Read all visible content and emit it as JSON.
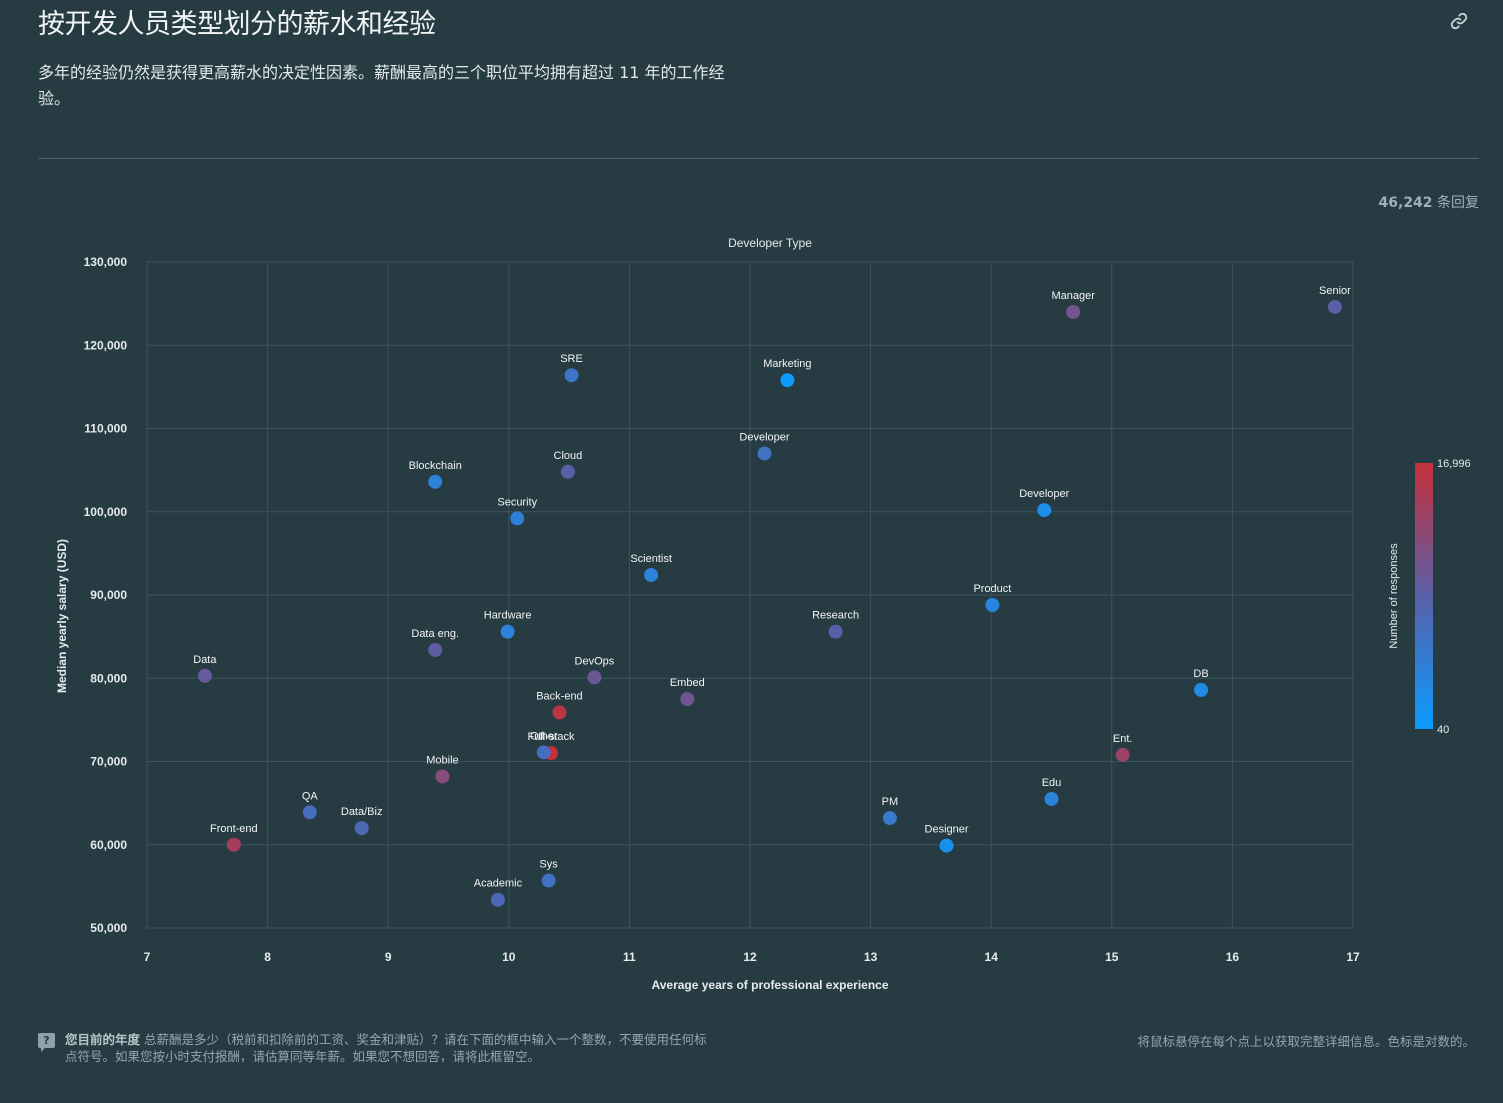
{
  "header": {
    "title": "按开发人员类型划分的薪水和经验",
    "subtitle": "多年的经验仍然是获得更高薪水的决定性因素。薪酬最高的三个职位平均拥有超过 11 年的工作经验。",
    "responses_count": "46,242",
    "responses_suffix": "条回复"
  },
  "colors": {
    "background": "#263b42",
    "grid": "#3c545d",
    "scale_low": "#0a9cff",
    "scale_high": "#c5303a"
  },
  "chart_data": {
    "type": "scatter",
    "title": "Developer Type",
    "xlabel": "Average years of professional experience",
    "ylabel": "Median yearly salary (USD)",
    "xlim": [
      7,
      17
    ],
    "ylim": [
      50000,
      130000
    ],
    "xticks": [
      7,
      8,
      9,
      10,
      11,
      12,
      13,
      14,
      15,
      16,
      17
    ],
    "yticks": [
      50000,
      60000,
      70000,
      80000,
      90000,
      100000,
      110000,
      120000,
      130000
    ],
    "ytick_labels": [
      "50,000",
      "60,000",
      "70,000",
      "80,000",
      "90,000",
      "100,000",
      "110,000",
      "120,000",
      "130,000"
    ],
    "color_scale": {
      "label": "Number of responses",
      "min_label": "40",
      "max_label": "16,996",
      "type": "log"
    },
    "points": [
      {
        "label": "Data",
        "x": 7.48,
        "y": 80300,
        "c": 0.55
      },
      {
        "label": "Front-end",
        "x": 7.72,
        "y": 60000,
        "c": 0.85
      },
      {
        "label": "QA",
        "x": 8.35,
        "y": 63900,
        "c": 0.38
      },
      {
        "label": "Data/Biz",
        "x": 8.78,
        "y": 62000,
        "c": 0.42
      },
      {
        "label": "Blockchain",
        "x": 9.39,
        "y": 103600,
        "c": 0.22
      },
      {
        "label": "Data eng.",
        "x": 9.39,
        "y": 83400,
        "c": 0.52
      },
      {
        "label": "Mobile",
        "x": 9.45,
        "y": 68200,
        "c": 0.7
      },
      {
        "label": "Academic",
        "x": 9.91,
        "y": 53400,
        "c": 0.42
      },
      {
        "label": "Hardware",
        "x": 9.99,
        "y": 85600,
        "c": 0.22
      },
      {
        "label": "Security",
        "x": 10.07,
        "y": 99200,
        "c": 0.22
      },
      {
        "label": "Full-stack",
        "x": 10.35,
        "y": 71000,
        "c": 1.0
      },
      {
        "label": "Other",
        "x": 10.29,
        "y": 71100,
        "c": 0.38
      },
      {
        "label": "Sys",
        "x": 10.33,
        "y": 55700,
        "c": 0.35
      },
      {
        "label": "Back-end",
        "x": 10.42,
        "y": 75900,
        "c": 0.95
      },
      {
        "label": "Cloud",
        "x": 10.49,
        "y": 104800,
        "c": 0.5
      },
      {
        "label": "SRE",
        "x": 10.52,
        "y": 116400,
        "c": 0.32
      },
      {
        "label": "DevOps",
        "x": 10.71,
        "y": 80100,
        "c": 0.58
      },
      {
        "label": "Scientist",
        "x": 11.18,
        "y": 92400,
        "c": 0.22
      },
      {
        "label": "Embed",
        "x": 11.48,
        "y": 77500,
        "c": 0.6
      },
      {
        "label": "Developer",
        "x": 12.12,
        "y": 107000,
        "c": 0.35
      },
      {
        "label": "Marketing",
        "x": 12.31,
        "y": 115800,
        "c": 0.0
      },
      {
        "label": "Research",
        "x": 12.71,
        "y": 85600,
        "c": 0.5
      },
      {
        "label": "PM",
        "x": 13.16,
        "y": 63200,
        "c": 0.28
      },
      {
        "label": "Designer",
        "x": 13.63,
        "y": 59900,
        "c": 0.1
      },
      {
        "label": "Product",
        "x": 14.01,
        "y": 88800,
        "c": 0.18
      },
      {
        "label": "Developer",
        "x": 14.44,
        "y": 100200,
        "c": 0.12
      },
      {
        "label": "Edu",
        "x": 14.5,
        "y": 65500,
        "c": 0.2
      },
      {
        "label": "Manager",
        "x": 14.68,
        "y": 124000,
        "c": 0.62
      },
      {
        "label": "Ent.",
        "x": 15.09,
        "y": 70800,
        "c": 0.8
      },
      {
        "label": "DB",
        "x": 15.74,
        "y": 78600,
        "c": 0.15
      },
      {
        "label": "Senior",
        "x": 16.85,
        "y": 124600,
        "c": 0.5
      }
    ]
  },
  "footer": {
    "question_icon": "?",
    "question_bold": "您目前的年度",
    "question_text": " 总薪酬是多少（税前和扣除前的工资、奖金和津贴）？请在下面的框中输入一个整数，不要使用任何标点符号。如果您按小时支付报酬，请估算同等年薪。如果您不想回答，请将此框留空。",
    "hint": "将鼠标悬停在每个点上以获取完整详细信息。色标是对数的。"
  }
}
